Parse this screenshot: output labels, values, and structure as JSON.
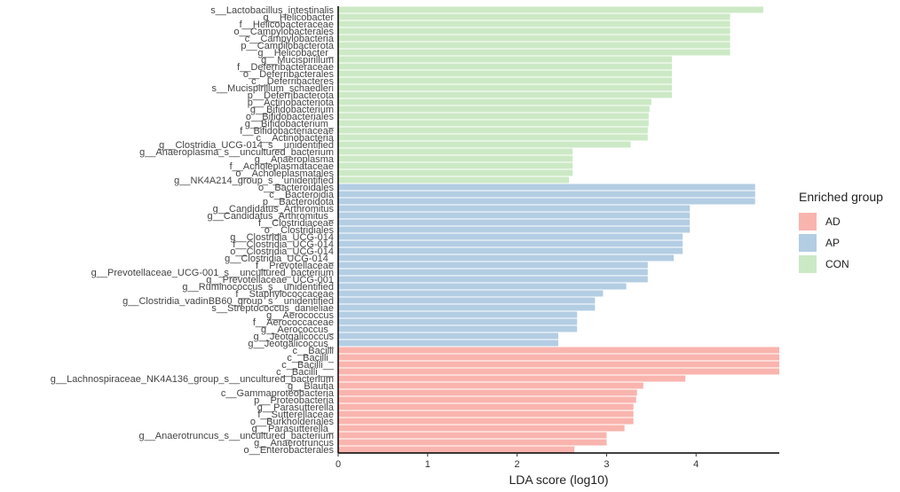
{
  "chart_data": {
    "type": "bar",
    "orientation": "horizontal",
    "xlabel": "LDA score (log10)",
    "xlim": [
      0,
      4.93
    ],
    "xticks": [
      0,
      1,
      2,
      3,
      4
    ],
    "legend": {
      "title": "Enriched group",
      "position": "right",
      "entries": [
        {
          "name": "AD",
          "color": "#f9b4ae"
        },
        {
          "name": "AP",
          "color": "#b3cde3"
        },
        {
          "name": "CON",
          "color": "#cce9c5"
        }
      ]
    },
    "bars": [
      {
        "label": "s__Lactobacillus_intestinalis",
        "value": 4.75,
        "group": "CON"
      },
      {
        "label": "g__Helicobacter",
        "value": 4.38,
        "group": "CON"
      },
      {
        "label": "f__Helicobacteraceae",
        "value": 4.38,
        "group": "CON"
      },
      {
        "label": "o__Campylobacterales",
        "value": 4.38,
        "group": "CON"
      },
      {
        "label": "c__Campylobacteria",
        "value": 4.38,
        "group": "CON"
      },
      {
        "label": "p__Campilobacterota",
        "value": 4.38,
        "group": "CON"
      },
      {
        "label": "g__Helicobacter_",
        "value": 4.38,
        "group": "CON"
      },
      {
        "label": "g__Mucispirillum",
        "value": 3.73,
        "group": "CON"
      },
      {
        "label": "f__Deferribacteraceae",
        "value": 3.73,
        "group": "CON"
      },
      {
        "label": "o__Deferribacterales",
        "value": 3.73,
        "group": "CON"
      },
      {
        "label": "c__Deferribacteres",
        "value": 3.73,
        "group": "CON"
      },
      {
        "label": "s__Mucispirillum_schaedleri",
        "value": 3.73,
        "group": "CON"
      },
      {
        "label": "p__Deferribacterota",
        "value": 3.73,
        "group": "CON"
      },
      {
        "label": "p__Actinobacteriota",
        "value": 3.5,
        "group": "CON"
      },
      {
        "label": "g__Bifidobacterium",
        "value": 3.48,
        "group": "CON"
      },
      {
        "label": "o__Bifidobacteriales",
        "value": 3.47,
        "group": "CON"
      },
      {
        "label": "g__Bifidobacterium_",
        "value": 3.47,
        "group": "CON"
      },
      {
        "label": "f__Bifidobacteriaceae",
        "value": 3.46,
        "group": "CON"
      },
      {
        "label": "c__Actinobacteria",
        "value": 3.46,
        "group": "CON"
      },
      {
        "label": "g__Clostridia_UCG-014_s__unidentified",
        "value": 3.27,
        "group": "CON"
      },
      {
        "label": "g__Anaeroplasma_s__uncultured_bacterium",
        "value": 2.62,
        "group": "CON"
      },
      {
        "label": "g__Anaeroplasma",
        "value": 2.62,
        "group": "CON"
      },
      {
        "label": "f__Acholeplasmataceae",
        "value": 2.62,
        "group": "CON"
      },
      {
        "label": "o__Acholeplasmatales",
        "value": 2.62,
        "group": "CON"
      },
      {
        "label": "g__NK4A214_group_s__unidentified",
        "value": 2.58,
        "group": "CON"
      },
      {
        "label": "o__Bacteroidales",
        "value": 4.66,
        "group": "AP"
      },
      {
        "label": "c__Bacteroidia",
        "value": 4.66,
        "group": "AP"
      },
      {
        "label": "p__Bacteroidota",
        "value": 4.66,
        "group": "AP"
      },
      {
        "label": "g__Candidatus_Arthromitus",
        "value": 3.93,
        "group": "AP"
      },
      {
        "label": "g__Candidatus_Arthromitus_",
        "value": 3.93,
        "group": "AP"
      },
      {
        "label": "f__Clostridiaceae",
        "value": 3.93,
        "group": "AP"
      },
      {
        "label": "o__Clostridiales",
        "value": 3.93,
        "group": "AP"
      },
      {
        "label": "g__Clostridia_UCG-014",
        "value": 3.85,
        "group": "AP"
      },
      {
        "label": "f__Clostridia_UCG-014",
        "value": 3.85,
        "group": "AP"
      },
      {
        "label": "o__Clostridia_UCG-014",
        "value": 3.85,
        "group": "AP"
      },
      {
        "label": "g__Clostridia_UCG-014_",
        "value": 3.75,
        "group": "AP"
      },
      {
        "label": "f__Prevotellaceae",
        "value": 3.46,
        "group": "AP"
      },
      {
        "label": "g__Prevotellaceae_UCG-001_s__uncultured_bacterium",
        "value": 3.46,
        "group": "AP"
      },
      {
        "label": "g__Prevotellaceae_UCG-001",
        "value": 3.46,
        "group": "AP"
      },
      {
        "label": "g__Ruminococcus_s__unidentified",
        "value": 3.22,
        "group": "AP"
      },
      {
        "label": "f__Staphylococcaceae",
        "value": 2.96,
        "group": "AP"
      },
      {
        "label": "g__Clostridia_vadinBB60_group_s__unidentified",
        "value": 2.87,
        "group": "AP"
      },
      {
        "label": "s__Streptococcus_danieliae",
        "value": 2.87,
        "group": "AP"
      },
      {
        "label": "g__Aerococcus",
        "value": 2.67,
        "group": "AP"
      },
      {
        "label": "f__Aerococcaceae",
        "value": 2.67,
        "group": "AP"
      },
      {
        "label": "g__Aerococcus_",
        "value": 2.67,
        "group": "AP"
      },
      {
        "label": "g__Jeotgalicoccus",
        "value": 2.46,
        "group": "AP"
      },
      {
        "label": "g__Jeotgalicoccus_",
        "value": 2.46,
        "group": "AP"
      },
      {
        "label": "c__Bacilli",
        "value": 4.93,
        "group": "AD"
      },
      {
        "label": "c__Bacilli_",
        "value": 4.93,
        "group": "AD"
      },
      {
        "label": "c__Bacilli__",
        "value": 4.93,
        "group": "AD"
      },
      {
        "label": "c__Bacilli___",
        "value": 4.93,
        "group": "AD"
      },
      {
        "label": "g__Lachnospiraceae_NK4A136_group_s__uncultured_bacterium",
        "value": 3.88,
        "group": "AD"
      },
      {
        "label": "g__Blautia",
        "value": 3.41,
        "group": "AD"
      },
      {
        "label": "c__Gammaproteobacteria",
        "value": 3.34,
        "group": "AD"
      },
      {
        "label": "p__Proteobacteria",
        "value": 3.33,
        "group": "AD"
      },
      {
        "label": "g__Parasutterella",
        "value": 3.3,
        "group": "AD"
      },
      {
        "label": "f__Sutterellaceae",
        "value": 3.3,
        "group": "AD"
      },
      {
        "label": "o__Burkholderiales",
        "value": 3.3,
        "group": "AD"
      },
      {
        "label": "g__Parasutterella_",
        "value": 3.2,
        "group": "AD"
      },
      {
        "label": "g__Anaerotruncus_s__uncultured_bacterium",
        "value": 3.0,
        "group": "AD"
      },
      {
        "label": "g__Anaerotruncus",
        "value": 3.0,
        "group": "AD"
      },
      {
        "label": "o__Enterobacterales",
        "value": 2.64,
        "group": "AD"
      }
    ]
  }
}
